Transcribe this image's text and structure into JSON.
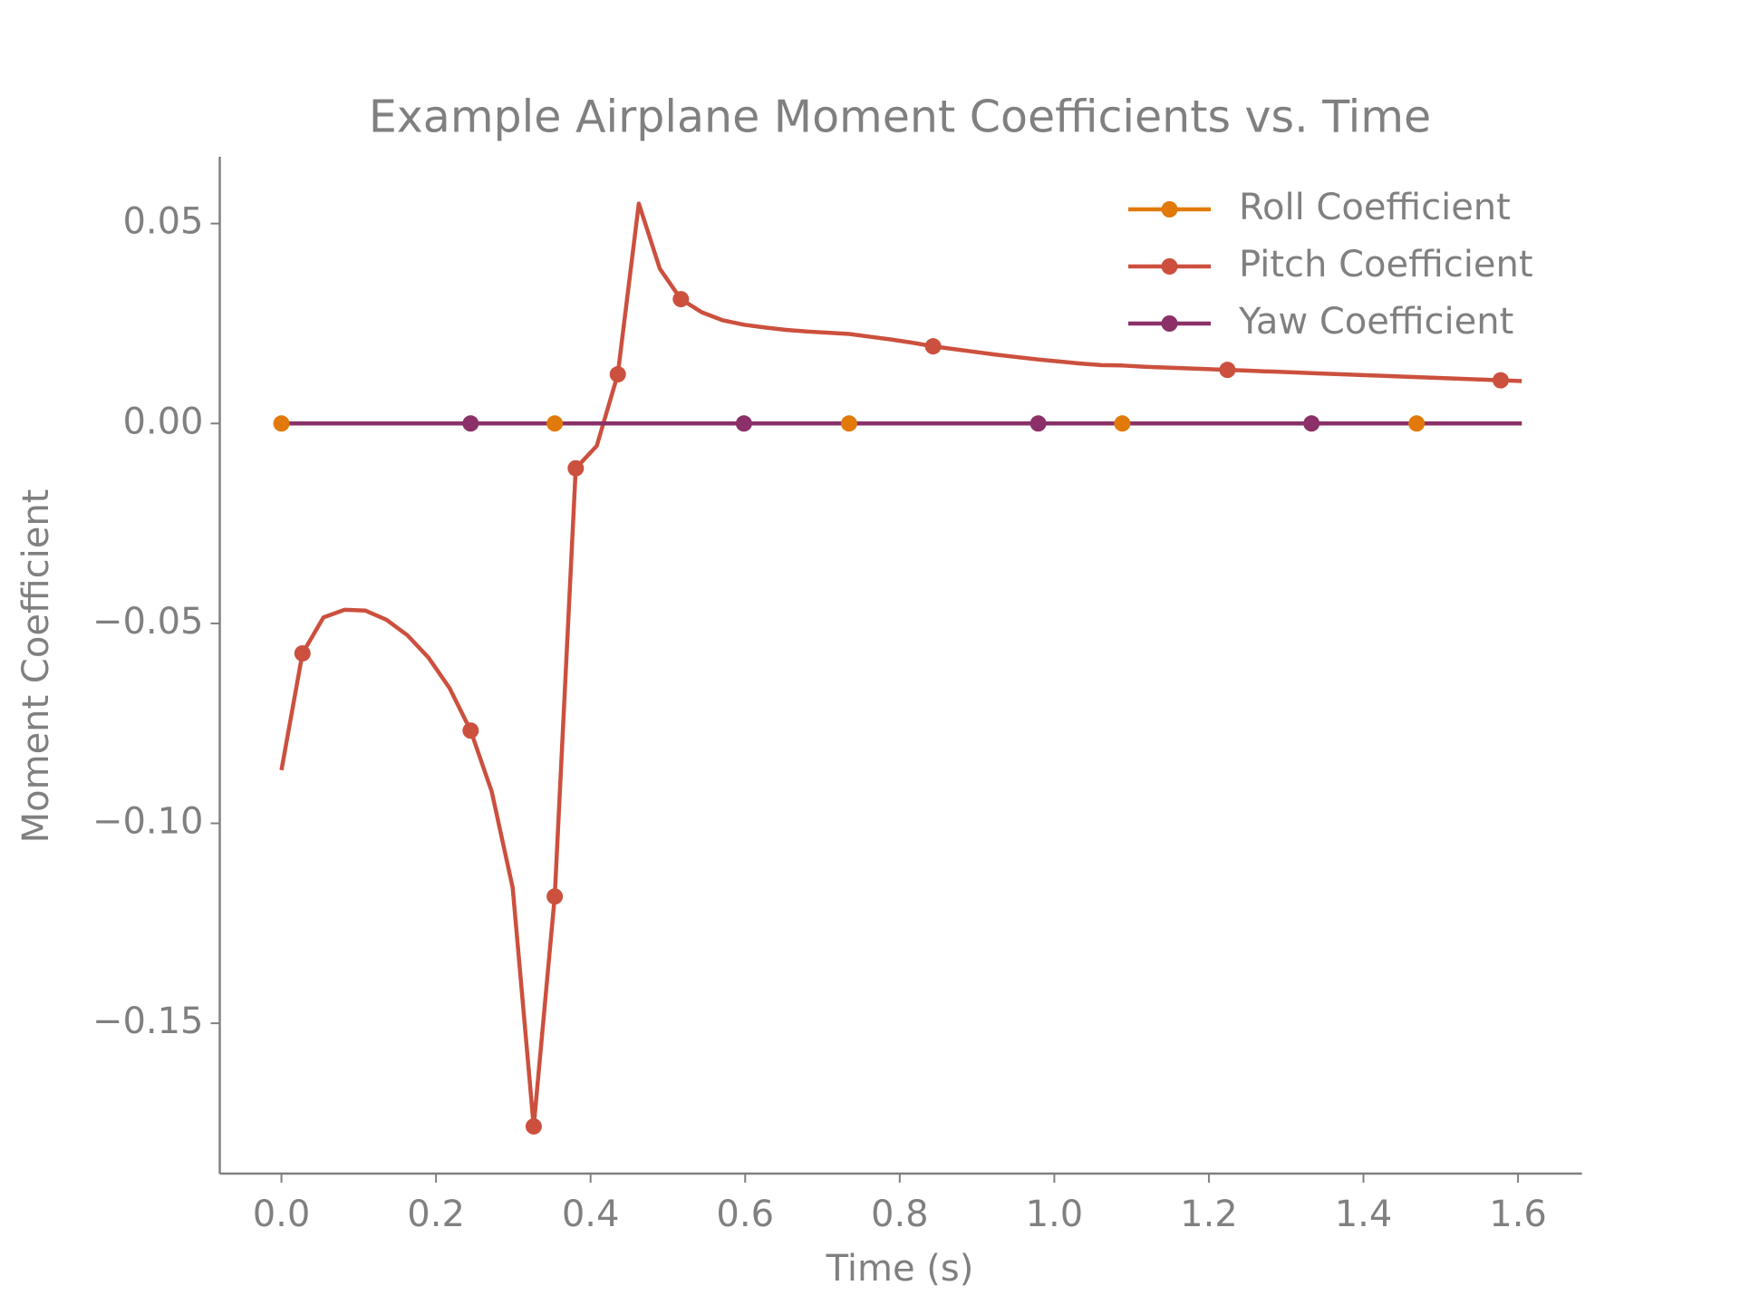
{
  "chart_data": {
    "type": "line",
    "title": "Example Airplane Moment Coefficients vs. Time",
    "xlabel": "Time (s)",
    "ylabel": "Moment Coefficient",
    "x": [
      0,
      0.0272,
      0.0544,
      0.0816,
      0.1088,
      0.136,
      0.1632,
      0.1904,
      0.2176,
      0.2448,
      0.272,
      0.2992,
      0.3264,
      0.3536,
      0.3808,
      0.408,
      0.4352,
      0.4624,
      0.4896,
      0.5168,
      0.544,
      0.5712,
      0.5984,
      0.6256,
      0.6528,
      0.68,
      0.7072,
      0.7344,
      0.7616,
      0.7888,
      0.816,
      0.8432,
      0.8704,
      0.8976,
      0.9248,
      0.952,
      0.9792,
      1.0064,
      1.0336,
      1.0608,
      1.088,
      1.1152,
      1.1424,
      1.1696,
      1.1968,
      1.224,
      1.2512,
      1.2784,
      1.3056,
      1.3328,
      1.36,
      1.3872,
      1.4144,
      1.4416,
      1.4688,
      1.496,
      1.5232,
      1.5504,
      1.5776,
      1.6048
    ],
    "series": [
      {
        "name": "Roll Coefficient",
        "color": "#e17a0b",
        "markevery": [
          0,
          13,
          27,
          40,
          54
        ],
        "values": [
          0,
          0,
          0,
          0,
          0,
          0,
          0,
          0,
          0,
          0,
          0,
          0,
          0,
          0,
          0,
          0,
          0,
          0,
          0,
          0,
          0,
          0,
          0,
          0,
          0,
          0,
          0,
          0,
          0,
          0,
          0,
          0,
          0,
          0,
          0,
          0,
          0,
          0,
          0,
          0,
          0,
          0,
          0,
          0,
          0,
          0,
          0,
          0,
          0,
          0,
          0,
          0,
          0,
          0,
          0,
          0,
          0,
          0,
          0,
          0
        ]
      },
      {
        "name": "Pitch Coefficient",
        "color": "#cc503e",
        "markevery": [
          1,
          9,
          12,
          13,
          14,
          16,
          19,
          31,
          45,
          58
        ],
        "values": [
          -0.0867,
          -0.0575,
          -0.0485,
          -0.0466,
          -0.0468,
          -0.0491,
          -0.053,
          -0.0586,
          -0.0662,
          -0.0768,
          -0.092,
          -0.1161,
          -0.1758,
          -0.1183,
          -0.0112,
          -0.0056,
          0.0123,
          0.055,
          0.0387,
          0.0311,
          0.0278,
          0.0258,
          0.0247,
          0.024,
          0.0234,
          0.023,
          0.0227,
          0.0224,
          0.0217,
          0.021,
          0.0202,
          0.0193,
          0.0186,
          0.0179,
          0.0172,
          0.0166,
          0.016,
          0.0155,
          0.015,
          0.0146,
          0.0145,
          0.0142,
          0.014,
          0.0138,
          0.0136,
          0.0134,
          0.0132,
          0.013,
          0.0128,
          0.0126,
          0.0124,
          0.0122,
          0.012,
          0.0118,
          0.0116,
          0.0114,
          0.0112,
          0.011,
          0.0108,
          0.0106
        ]
      },
      {
        "name": "Yaw Coefficient",
        "color": "#8b3068",
        "markevery": [
          9,
          22,
          36,
          49
        ],
        "values": [
          0,
          0,
          0,
          0,
          0,
          0,
          0,
          0,
          0,
          0,
          0,
          0,
          0,
          0,
          0,
          0,
          0,
          0,
          0,
          0,
          0,
          0,
          0,
          0,
          0,
          0,
          0,
          0,
          0,
          0,
          0,
          0,
          0,
          0,
          0,
          0,
          0,
          0,
          0,
          0,
          0,
          0,
          0,
          0,
          0,
          0,
          0,
          0,
          0,
          0,
          0,
          0,
          0,
          0,
          0,
          0,
          0,
          0,
          0,
          0
        ]
      }
    ],
    "xlim": [
      -0.0798,
      1.6827
    ],
    "ylim": [
      -0.1876,
      0.0667
    ],
    "xticks": [
      {
        "value": 0,
        "label": "0.0"
      },
      0.2,
      0.4,
      0.6,
      0.8,
      {
        "value": 1,
        "label": "1.0"
      },
      1.2,
      1.4,
      1.6
    ],
    "yticks": [
      {
        "value": -0.15,
        "label": "−0.15"
      },
      {
        "value": -0.1,
        "label": "−0.10"
      },
      {
        "value": -0.05,
        "label": "−0.05"
      },
      {
        "value": 0,
        "label": "0.00"
      },
      0.05
    ],
    "grid": false,
    "legend": "upper right"
  }
}
